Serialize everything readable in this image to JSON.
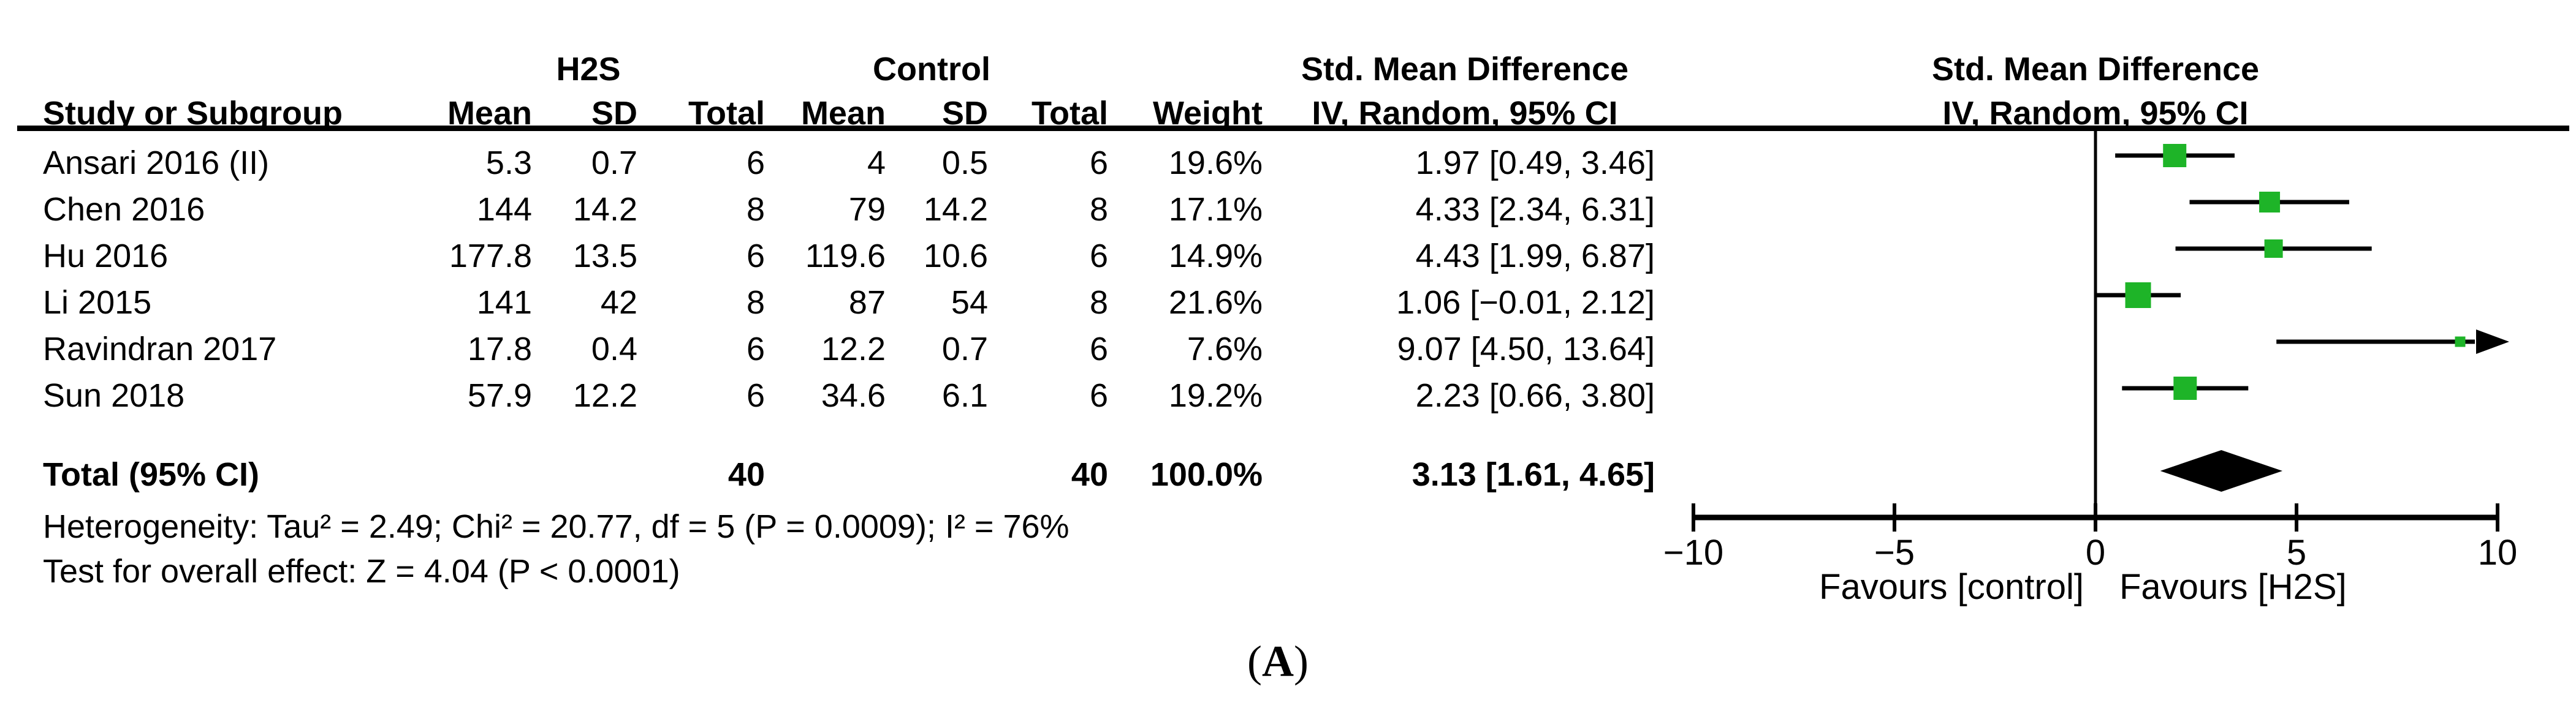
{
  "table": {
    "group_headers": {
      "h2s": "H2S",
      "control": "Control",
      "smd_table": "Std. Mean Difference",
      "smd_plot": "Std. Mean Difference"
    },
    "column_headers": {
      "study": "Study or Subgroup",
      "mean1": "Mean",
      "sd1": "SD",
      "total1": "Total",
      "mean2": "Mean",
      "sd2": "SD",
      "total2": "Total",
      "weight": "Weight",
      "ci_table": "IV, Random, 95% CI",
      "ci_plot": "IV, Random, 95% CI"
    },
    "studies": [
      {
        "name": "Ansari 2016 (II)",
        "mean1": "5.3",
        "sd1": "0.7",
        "total1": "6",
        "mean2": "4",
        "sd2": "0.5",
        "total2": "6",
        "weight": "19.6%",
        "ci_text": "1.97 [0.49, 3.46]"
      },
      {
        "name": "Chen 2016",
        "mean1": "144",
        "sd1": "14.2",
        "total1": "8",
        "mean2": "79",
        "sd2": "14.2",
        "total2": "8",
        "weight": "17.1%",
        "ci_text": "4.33 [2.34, 6.31]"
      },
      {
        "name": "Hu 2016",
        "mean1": "177.8",
        "sd1": "13.5",
        "total1": "6",
        "mean2": "119.6",
        "sd2": "10.6",
        "total2": "6",
        "weight": "14.9%",
        "ci_text": "4.43 [1.99, 6.87]"
      },
      {
        "name": "Li 2015",
        "mean1": "141",
        "sd1": "42",
        "total1": "8",
        "mean2": "87",
        "sd2": "54",
        "total2": "8",
        "weight": "21.6%",
        "ci_text": "1.06 [−0.01, 2.12]"
      },
      {
        "name": "Ravindran 2017",
        "mean1": "17.8",
        "sd1": "0.4",
        "total1": "6",
        "mean2": "12.2",
        "sd2": "0.7",
        "total2": "6",
        "weight": "7.6%",
        "ci_text": "9.07 [4.50, 13.64]"
      },
      {
        "name": "Sun 2018",
        "mean1": "57.9",
        "sd1": "12.2",
        "total1": "6",
        "mean2": "34.6",
        "sd2": "6.1",
        "total2": "6",
        "weight": "19.2%",
        "ci_text": "2.23 [0.66, 3.80]"
      }
    ],
    "total_row": {
      "label": "Total (95% CI)",
      "total1": "40",
      "total2": "40",
      "weight": "100.0%",
      "ci_text": "3.13 [1.61, 4.65]"
    },
    "heterogeneity": "Heterogeneity: Tau² = 2.49; Chi² = 20.77, df = 5 (P = 0.0009); I² = 76%",
    "overall_effect": "Test for overall effect: Z = 4.04 (P < 0.0001)"
  },
  "chart_data": {
    "type": "forest",
    "title": "Std. Mean Difference",
    "subtitle": "IV, Random, 95% CI",
    "xlim": [
      -10,
      10
    ],
    "ticks": [
      -10,
      -5,
      0,
      5,
      10
    ],
    "tick_labels": [
      "−10",
      "−5",
      "0",
      "5",
      "10"
    ],
    "xlabel_left": "Favours [control]",
    "xlabel_right": "Favours [H2S]",
    "studies": [
      {
        "name": "Ansari 2016 (II)",
        "est": 1.97,
        "lo": 0.49,
        "hi": 3.46,
        "weight": 19.6
      },
      {
        "name": "Chen 2016",
        "est": 4.33,
        "lo": 2.34,
        "hi": 6.31,
        "weight": 17.1
      },
      {
        "name": "Hu 2016",
        "est": 4.43,
        "lo": 1.99,
        "hi": 6.87,
        "weight": 14.9
      },
      {
        "name": "Li 2015",
        "est": 1.06,
        "lo": -0.01,
        "hi": 2.12,
        "weight": 21.6
      },
      {
        "name": "Ravindran 2017",
        "est": 9.07,
        "lo": 4.5,
        "hi": 13.64,
        "weight": 7.6
      },
      {
        "name": "Sun 2018",
        "est": 2.23,
        "lo": 0.66,
        "hi": 3.8,
        "weight": 19.2
      }
    ],
    "total": {
      "est": 3.13,
      "lo": 1.61,
      "hi": 4.65
    },
    "marker_color": "#1EB428",
    "line_color": "#000000"
  },
  "caption": "(A)"
}
